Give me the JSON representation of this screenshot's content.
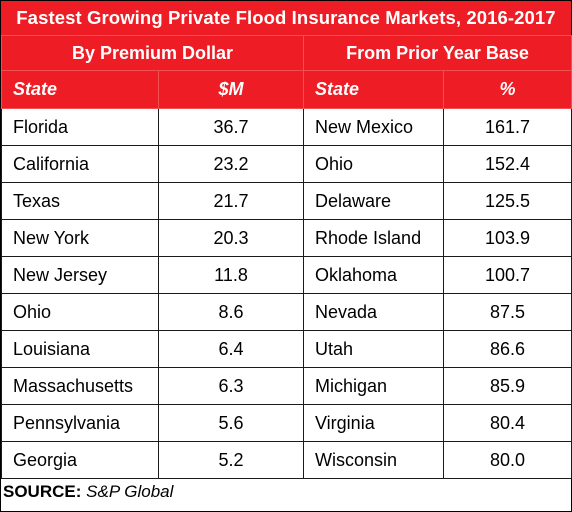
{
  "chart_data": {
    "type": "table",
    "title": "Fastest Growing Private Flood Insurance Markets, 2016-2017",
    "groups": [
      {
        "label": "By Premium Dollar",
        "columns": [
          "State",
          "$M"
        ],
        "rows": [
          {
            "state": "Florida",
            "value": "36.7"
          },
          {
            "state": "California",
            "value": "23.2"
          },
          {
            "state": "Texas",
            "value": "21.7"
          },
          {
            "state": "New York",
            "value": "20.3"
          },
          {
            "state": "New Jersey",
            "value": "11.8"
          },
          {
            "state": "Ohio",
            "value": "8.6"
          },
          {
            "state": "Louisiana",
            "value": "6.4"
          },
          {
            "state": "Massachusetts",
            "value": "6.3"
          },
          {
            "state": "Pennsylvania",
            "value": "5.6"
          },
          {
            "state": "Georgia",
            "value": "5.2"
          }
        ]
      },
      {
        "label": "From Prior Year Base",
        "columns": [
          "State",
          "%"
        ],
        "rows": [
          {
            "state": "New Mexico",
            "value": "161.7"
          },
          {
            "state": "Ohio",
            "value": "152.4"
          },
          {
            "state": "Delaware",
            "value": "125.5"
          },
          {
            "state": "Rhode Island",
            "value": "103.9"
          },
          {
            "state": "Oklahoma",
            "value": "100.7"
          },
          {
            "state": "Nevada",
            "value": "87.5"
          },
          {
            "state": "Utah",
            "value": "86.6"
          },
          {
            "state": "Michigan",
            "value": "85.9"
          },
          {
            "state": "Virginia",
            "value": "80.4"
          },
          {
            "state": "Wisconsin",
            "value": "80.0"
          }
        ]
      }
    ],
    "source_label": "SOURCE:",
    "source_value": "S&P Global"
  },
  "colors": {
    "header_bg": "#ee1c24",
    "header_text": "#ffffff",
    "border": "#1a1a1a"
  }
}
